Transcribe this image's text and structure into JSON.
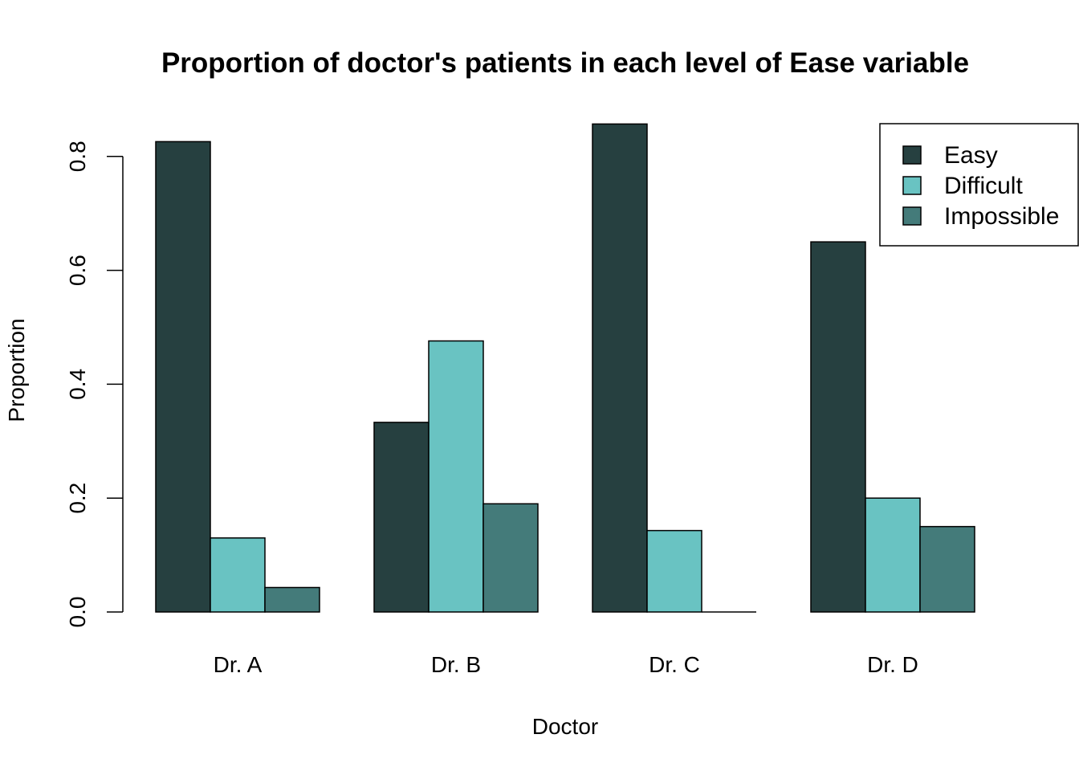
{
  "chart_data": {
    "type": "bar",
    "title": "Proportion of doctor's patients in each level of Ease variable",
    "xlabel": "Doctor",
    "ylabel": "Proportion",
    "categories": [
      "Dr. A",
      "Dr. B",
      "Dr. C",
      "Dr. D"
    ],
    "series": [
      {
        "name": "Easy",
        "color": "#264040",
        "values": [
          0.826,
          0.333,
          0.857,
          0.65
        ]
      },
      {
        "name": "Difficult",
        "color": "#69C3C2",
        "values": [
          0.13,
          0.476,
          0.143,
          0.2
        ]
      },
      {
        "name": "Impossible",
        "color": "#447B7A",
        "values": [
          0.043,
          0.19,
          0.0,
          0.15
        ]
      }
    ],
    "ylim": [
      0,
      0.85
    ],
    "yticks": [
      0,
      0.2,
      0.4,
      0.6,
      0.8
    ],
    "ytick_labels": [
      "0.0",
      "0.2",
      "0.4",
      "0.6",
      "0.8"
    ],
    "grid": false,
    "legend_position": "top-right"
  }
}
